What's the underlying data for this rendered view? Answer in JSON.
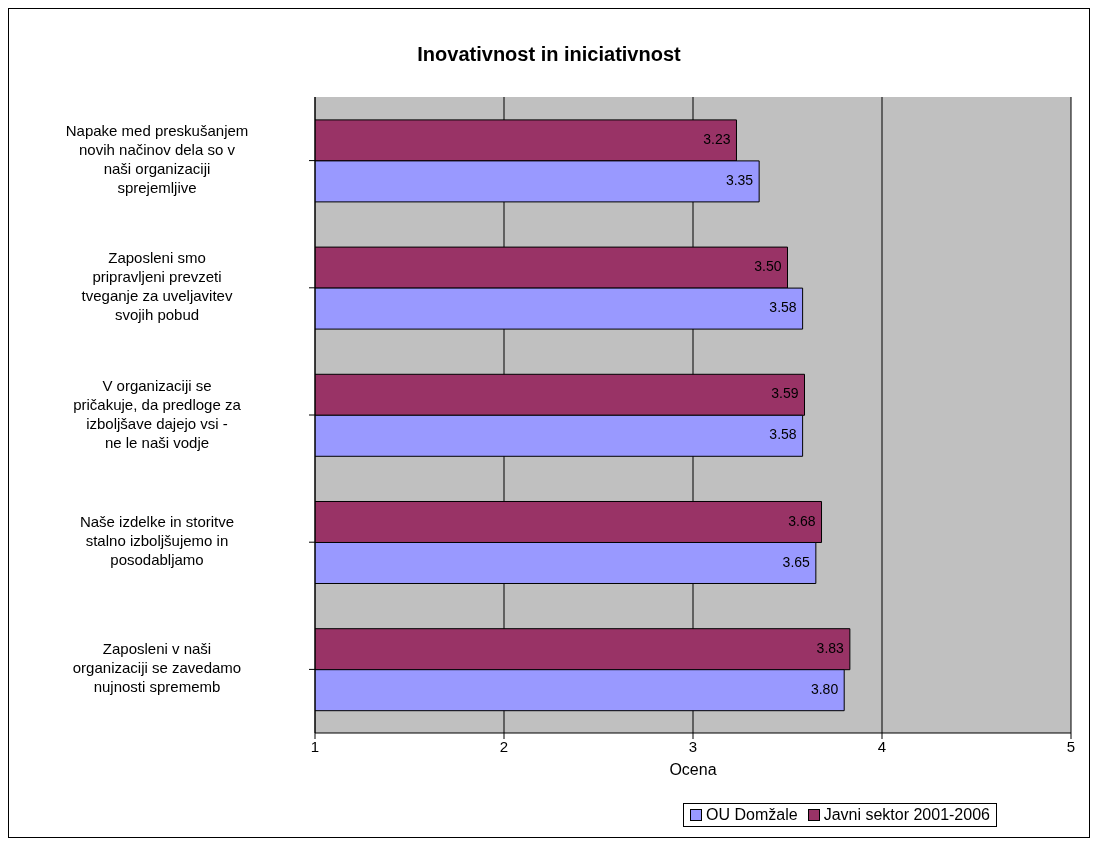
{
  "chart_data": {
    "type": "bar",
    "orientation": "horizontal",
    "title": "Inovativnost in iniciativnost",
    "xlabel": "Ocena",
    "categories": [
      "Napake med preskušanjem novih načinov dela so v naši organizaciji sprejemljive",
      "Zaposleni smo pripravljeni prevzeti tveganje za uveljavitev svojih pobud",
      "V organizaciji se pričakuje, da predloge za izboljšave dajejo vsi - ne le naši vodje",
      "Naše izdelke in storitve stalno izboljšujemo in posodabljamo",
      "Zaposleni v naši organizaciji se zavedamo nujnosti sprememb"
    ],
    "series": [
      {
        "name": "OU Domžale",
        "color": "#9999ff",
        "values": [
          3.35,
          3.58,
          3.58,
          3.65,
          3.8
        ],
        "value_labels": [
          "3.35",
          "3.58",
          "3.58",
          "3.65",
          "3.80"
        ]
      },
      {
        "name": "Javni sektor 2001-2006",
        "color": "#993366",
        "values": [
          3.23,
          3.5,
          3.59,
          3.68,
          3.83
        ],
        "value_labels": [
          "3.23",
          "3.50",
          "3.59",
          "3.68",
          "3.83"
        ]
      }
    ],
    "xlim": [
      1,
      5
    ],
    "xticks": [
      1,
      2,
      3,
      4,
      5
    ],
    "grid": "x",
    "legend": "bottom"
  }
}
